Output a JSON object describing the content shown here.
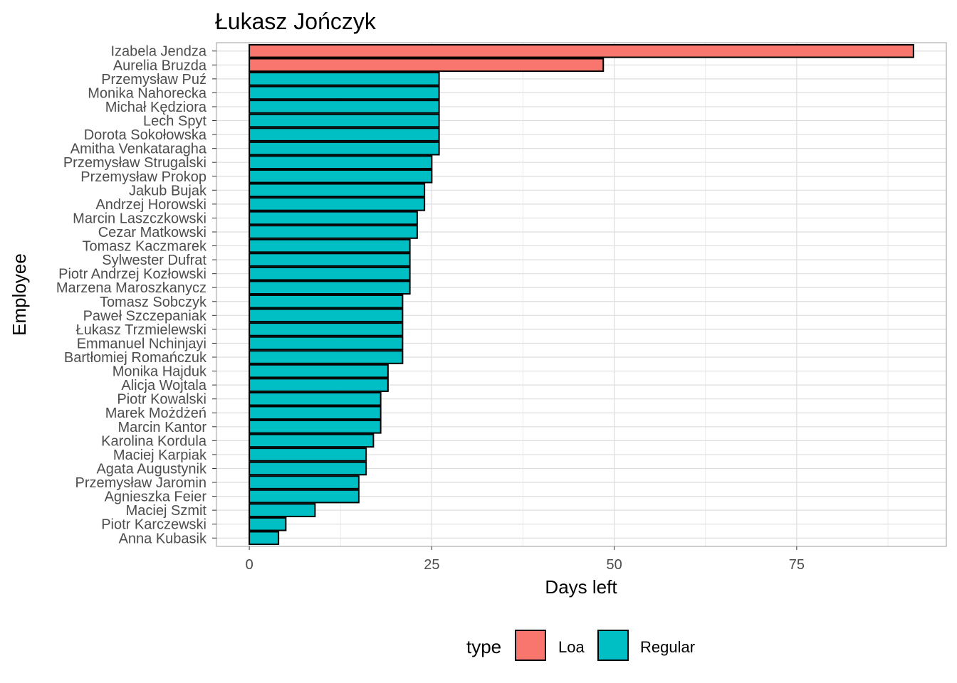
{
  "chart_data": {
    "type": "bar",
    "orientation": "horizontal",
    "title": "Łukasz Jończyk",
    "xlabel": "Days left",
    "ylabel": "Employee",
    "xlim": [
      -4.5,
      95.5
    ],
    "xticks": [
      0,
      25,
      50,
      75
    ],
    "grid": true,
    "legend": {
      "title": "type",
      "position": "bottom",
      "entries": [
        {
          "name": "Loa",
          "color": "#F8766D"
        },
        {
          "name": "Regular",
          "color": "#00BFC4"
        }
      ]
    },
    "bars": [
      {
        "name": "Izabela Jendza",
        "value": 91,
        "type": "Loa"
      },
      {
        "name": "Aurelia Bruzda",
        "value": 48.5,
        "type": "Loa"
      },
      {
        "name": "Przemysław Puź",
        "value": 26,
        "type": "Regular"
      },
      {
        "name": "Monika Nahorecka",
        "value": 26,
        "type": "Regular"
      },
      {
        "name": "Michał Kędziora",
        "value": 26,
        "type": "Regular"
      },
      {
        "name": "Lech Spyt",
        "value": 26,
        "type": "Regular"
      },
      {
        "name": "Dorota Sokołowska",
        "value": 26,
        "type": "Regular"
      },
      {
        "name": "Amitha  Venkataragha",
        "value": 26,
        "type": "Regular"
      },
      {
        "name": "Przemysław Strugalski",
        "value": 25,
        "type": "Regular"
      },
      {
        "name": "Przemysław Prokop",
        "value": 25,
        "type": "Regular"
      },
      {
        "name": "Jakub Bujak",
        "value": 24,
        "type": "Regular"
      },
      {
        "name": "Andrzej Horowski",
        "value": 24,
        "type": "Regular"
      },
      {
        "name": "Marcin Laszczkowski",
        "value": 23,
        "type": "Regular"
      },
      {
        "name": "Cezar Matkowski",
        "value": 23,
        "type": "Regular"
      },
      {
        "name": "Tomasz Kaczmarek",
        "value": 22,
        "type": "Regular"
      },
      {
        "name": "Sylwester Dufrat",
        "value": 22,
        "type": "Regular"
      },
      {
        "name": "Piotr Andrzej Kozłowski",
        "value": 22,
        "type": "Regular"
      },
      {
        "name": "Marzena Maroszkanycz",
        "value": 22,
        "type": "Regular"
      },
      {
        "name": "Tomasz Sobczyk",
        "value": 21,
        "type": "Regular"
      },
      {
        "name": "Paweł Szczepaniak",
        "value": 21,
        "type": "Regular"
      },
      {
        "name": "Łukasz Trzmielewski",
        "value": 21,
        "type": "Regular"
      },
      {
        "name": "Emmanuel Nchinjayi",
        "value": 21,
        "type": "Regular"
      },
      {
        "name": "Bartłomiej Romańczuk",
        "value": 21,
        "type": "Regular"
      },
      {
        "name": "Monika Hajduk",
        "value": 19,
        "type": "Regular"
      },
      {
        "name": "Alicja Wojtala",
        "value": 19,
        "type": "Regular"
      },
      {
        "name": "Piotr Kowalski",
        "value": 18,
        "type": "Regular"
      },
      {
        "name": "Marek Możdżeń",
        "value": 18,
        "type": "Regular"
      },
      {
        "name": "Marcin Kantor",
        "value": 18,
        "type": "Regular"
      },
      {
        "name": "Karolina Kordula",
        "value": 17,
        "type": "Regular"
      },
      {
        "name": "Maciej Karpiak",
        "value": 16,
        "type": "Regular"
      },
      {
        "name": "Agata Augustynik",
        "value": 16,
        "type": "Regular"
      },
      {
        "name": "Przemysław Jaromin",
        "value": 15,
        "type": "Regular"
      },
      {
        "name": "Agnieszka Feier",
        "value": 15,
        "type": "Regular"
      },
      {
        "name": "Maciej Szmit",
        "value": 9,
        "type": "Regular"
      },
      {
        "name": "Piotr Karczewski",
        "value": 5,
        "type": "Regular"
      },
      {
        "name": "Anna Kubasik",
        "value": 4,
        "type": "Regular"
      }
    ]
  }
}
